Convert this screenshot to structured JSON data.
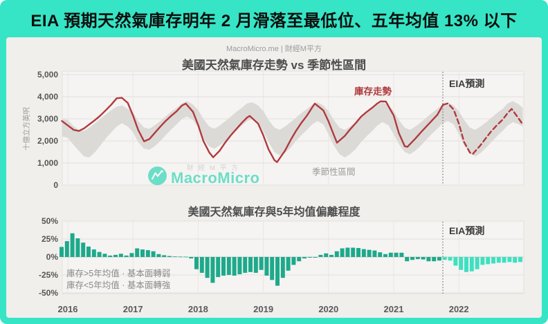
{
  "banner": {
    "title": "EIA 預期天然氣庫存明年 2 月滑落至最低位、五年均值 13% 以下"
  },
  "header": {
    "source": "MacroMicro.me | 財經M平方"
  },
  "watermark": {
    "brand": "MacroMicro",
    "overlay": "財經M平方"
  },
  "colors": {
    "accent": "#35e5c5",
    "line": "#b03a3d",
    "band": "#dcdad7",
    "bar_history": "#1ea98b",
    "bar_forecast": "#3fe0c0",
    "grid": "#e3e1de",
    "grid_year": "#e8e6e3",
    "zero_line": "#ccc9c6",
    "plot_bg": "#f5f4f2",
    "divider": "#6b6b6b"
  },
  "chart_data": [
    {
      "type": "line",
      "title": "美國天然氣庫存走勢 vs 季節性區間",
      "ylabel": "十億立方英呎",
      "ylim": [
        0,
        5000
      ],
      "grid": true,
      "yticks": [
        {
          "v": 5000,
          "label": "5,000"
        },
        {
          "v": 4000,
          "label": "4,000"
        },
        {
          "v": 3000,
          "label": "3,000"
        },
        {
          "v": 2000,
          "label": "2,000"
        },
        {
          "v": 1000,
          "label": "1,000"
        },
        {
          "v": 0,
          "label": "0"
        }
      ],
      "years": [
        "2016",
        "2017",
        "2018",
        "2019",
        "2020",
        "2021",
        "2022"
      ],
      "labels": {
        "series": "庫存走勢",
        "band": "季節性區間",
        "forecast": "EIA預測"
      },
      "forecast_start_t": 5.755,
      "x_unit": "years_since_2016",
      "series": [
        {
          "name": "庫存走勢",
          "style": "solid",
          "points": [
            [
              -0.09,
              2900
            ],
            [
              0,
              2700
            ],
            [
              0.09,
              2500
            ],
            [
              0.17,
              2450
            ],
            [
              0.25,
              2570
            ],
            [
              0.33,
              2750
            ],
            [
              0.42,
              2950
            ],
            [
              0.5,
              3150
            ],
            [
              0.58,
              3380
            ],
            [
              0.67,
              3650
            ],
            [
              0.75,
              3930
            ],
            [
              0.83,
              3950
            ],
            [
              0.92,
              3720
            ],
            [
              1.0,
              3150
            ],
            [
              1.08,
              2500
            ],
            [
              1.17,
              1980
            ],
            [
              1.25,
              2080
            ],
            [
              1.33,
              2350
            ],
            [
              1.42,
              2650
            ],
            [
              1.5,
              2900
            ],
            [
              1.58,
              3120
            ],
            [
              1.67,
              3340
            ],
            [
              1.75,
              3600
            ],
            [
              1.81,
              3690
            ],
            [
              1.92,
              3320
            ],
            [
              2.0,
              2720
            ],
            [
              2.08,
              2000
            ],
            [
              2.17,
              1480
            ],
            [
              2.23,
              1260
            ],
            [
              2.33,
              1560
            ],
            [
              2.42,
              1950
            ],
            [
              2.5,
              2250
            ],
            [
              2.58,
              2520
            ],
            [
              2.67,
              2820
            ],
            [
              2.75,
              3060
            ],
            [
              2.79,
              3130
            ],
            [
              2.92,
              2780
            ],
            [
              3.0,
              2250
            ],
            [
              3.08,
              1620
            ],
            [
              3.17,
              1130
            ],
            [
              3.21,
              1040
            ],
            [
              3.33,
              1550
            ],
            [
              3.42,
              2050
            ],
            [
              3.5,
              2450
            ],
            [
              3.58,
              2800
            ],
            [
              3.67,
              3150
            ],
            [
              3.75,
              3520
            ],
            [
              3.79,
              3690
            ],
            [
              3.92,
              3380
            ],
            [
              4.0,
              2880
            ],
            [
              4.08,
              2280
            ],
            [
              4.13,
              1920
            ],
            [
              4.25,
              2230
            ],
            [
              4.33,
              2520
            ],
            [
              4.42,
              2820
            ],
            [
              4.5,
              3100
            ],
            [
              4.58,
              3300
            ],
            [
              4.67,
              3500
            ],
            [
              4.75,
              3700
            ],
            [
              4.8,
              3790
            ],
            [
              4.88,
              3780
            ],
            [
              5.0,
              3150
            ],
            [
              5.08,
              2350
            ],
            [
              5.17,
              1760
            ],
            [
              5.21,
              1730
            ],
            [
              5.33,
              2100
            ],
            [
              5.42,
              2400
            ],
            [
              5.5,
              2650
            ],
            [
              5.58,
              2900
            ],
            [
              5.67,
              3180
            ],
            [
              5.755,
              3630
            ]
          ]
        },
        {
          "name": "庫存走勢 (EIA預測)",
          "style": "dashed",
          "points": [
            [
              5.755,
              3630
            ],
            [
              5.83,
              3700
            ],
            [
              5.92,
              3420
            ],
            [
              6.0,
              2780
            ],
            [
              6.08,
              1950
            ],
            [
              6.17,
              1470
            ],
            [
              6.21,
              1400
            ],
            [
              6.33,
              1800
            ],
            [
              6.42,
              2150
            ],
            [
              6.5,
              2450
            ],
            [
              6.58,
              2700
            ],
            [
              6.67,
              2960
            ],
            [
              6.75,
              3270
            ],
            [
              6.81,
              3450
            ],
            [
              6.92,
              3000
            ],
            [
              6.98,
              2750
            ]
          ]
        }
      ],
      "band": {
        "name": "季節性區間",
        "points": [
          [
            -0.09,
            3000,
            2200
          ],
          [
            0,
            2950,
            2150
          ],
          [
            0.08,
            2700,
            1850
          ],
          [
            0.17,
            2500,
            1550
          ],
          [
            0.25,
            2450,
            1300
          ],
          [
            0.33,
            2600,
            1250
          ],
          [
            0.42,
            2800,
            1500
          ],
          [
            0.5,
            3000,
            1800
          ],
          [
            0.58,
            3200,
            2100
          ],
          [
            0.67,
            3400,
            2400
          ],
          [
            0.75,
            3550,
            2650
          ],
          [
            0.83,
            3600,
            2800
          ],
          [
            0.92,
            3450,
            2650
          ],
          [
            1.0,
            3300,
            2400
          ],
          [
            1.08,
            2900,
            1950
          ],
          [
            1.17,
            2600,
            1650
          ],
          [
            1.25,
            2550,
            1600
          ],
          [
            1.33,
            2700,
            1750
          ],
          [
            1.42,
            2900,
            2000
          ],
          [
            1.5,
            3100,
            2250
          ],
          [
            1.58,
            3300,
            2500
          ],
          [
            1.67,
            3500,
            2750
          ],
          [
            1.75,
            3700,
            3000
          ],
          [
            1.83,
            3800,
            3100
          ],
          [
            1.92,
            3650,
            2950
          ],
          [
            2.0,
            3400,
            2600
          ],
          [
            2.08,
            3000,
            2100
          ],
          [
            2.17,
            2650,
            1750
          ],
          [
            2.25,
            2550,
            1650
          ],
          [
            2.33,
            2700,
            1800
          ],
          [
            2.42,
            2900,
            2000
          ],
          [
            2.5,
            3100,
            2250
          ],
          [
            2.58,
            3300,
            2450
          ],
          [
            2.67,
            3500,
            2700
          ],
          [
            2.75,
            3700,
            2900
          ],
          [
            2.83,
            3750,
            3000
          ],
          [
            2.92,
            3600,
            2850
          ],
          [
            3.0,
            3350,
            2450
          ],
          [
            3.08,
            2950,
            1950
          ],
          [
            3.17,
            2600,
            1500
          ],
          [
            3.25,
            2500,
            1350
          ],
          [
            3.33,
            2650,
            1450
          ],
          [
            3.42,
            2850,
            1700
          ],
          [
            3.5,
            3050,
            2000
          ],
          [
            3.58,
            3250,
            2250
          ],
          [
            3.67,
            3450,
            2500
          ],
          [
            3.75,
            3650,
            2750
          ],
          [
            3.83,
            3750,
            2900
          ],
          [
            3.92,
            3600,
            2750
          ],
          [
            4.0,
            3350,
            2300
          ],
          [
            4.08,
            2950,
            1800
          ],
          [
            4.17,
            2600,
            1400
          ],
          [
            4.25,
            2500,
            1250
          ],
          [
            4.33,
            2650,
            1400
          ],
          [
            4.42,
            2850,
            1650
          ],
          [
            4.5,
            3050,
            1950
          ],
          [
            4.58,
            3250,
            2200
          ],
          [
            4.67,
            3450,
            2450
          ],
          [
            4.75,
            3650,
            2700
          ],
          [
            4.83,
            3750,
            2850
          ],
          [
            4.92,
            3600,
            2700
          ],
          [
            5.0,
            3350,
            2300
          ],
          [
            5.08,
            2950,
            1850
          ],
          [
            5.17,
            2600,
            1500
          ],
          [
            5.25,
            2500,
            1400
          ],
          [
            5.33,
            2650,
            1550
          ],
          [
            5.42,
            2850,
            1800
          ],
          [
            5.5,
            3050,
            2050
          ],
          [
            5.58,
            3250,
            2300
          ],
          [
            5.67,
            3450,
            2550
          ],
          [
            5.75,
            3650,
            2800
          ],
          [
            5.83,
            3750,
            2900
          ],
          [
            5.92,
            3600,
            2750
          ],
          [
            6.0,
            3350,
            2300
          ],
          [
            6.08,
            2950,
            1800
          ],
          [
            6.17,
            2600,
            1450
          ],
          [
            6.25,
            2500,
            1300
          ],
          [
            6.33,
            2650,
            1450
          ],
          [
            6.42,
            2850,
            1700
          ],
          [
            6.5,
            3050,
            1950
          ],
          [
            6.58,
            3250,
            2200
          ],
          [
            6.67,
            3450,
            2450
          ],
          [
            6.75,
            3700,
            2700
          ],
          [
            6.83,
            3800,
            2850
          ],
          [
            6.92,
            3650,
            2750
          ],
          [
            6.98,
            3500,
            2650
          ]
        ]
      }
    },
    {
      "type": "bar",
      "title": "美國天然氣庫存與5年均值偏離程度",
      "unit": "%",
      "ylim": [
        -50,
        50
      ],
      "grid": true,
      "yticks": [
        {
          "v": 50,
          "label": "50%"
        },
        {
          "v": 25,
          "label": "25%"
        },
        {
          "v": 0,
          "label": "0%"
        },
        {
          "v": -25,
          "label": "-25%"
        },
        {
          "v": -50,
          "label": "-50%"
        }
      ],
      "years": [
        "2016",
        "2017",
        "2018",
        "2019",
        "2020",
        "2021",
        "2022"
      ],
      "frequency": "monthly",
      "start": "2016-01",
      "values_history": [
        14,
        22,
        33,
        26,
        20,
        14.5,
        10.5,
        7,
        4.5,
        2,
        3,
        4.5,
        2,
        5.5,
        12,
        10.5,
        9.5,
        8,
        4,
        2.5,
        1.3,
        0.8,
        0.6,
        0.4,
        -2,
        -17,
        -22,
        -29,
        -36,
        -28,
        -26,
        -25,
        -26,
        -24,
        -22,
        -21,
        -22,
        -18,
        -26,
        -32,
        -40,
        -29,
        -19,
        -11,
        -6,
        -2,
        -1,
        -1,
        3,
        5,
        3,
        8,
        12,
        13,
        13,
        12.5,
        11,
        10,
        9,
        6.5,
        4,
        6,
        6,
        6,
        -6,
        -4,
        -3,
        -3.5,
        -6,
        -6,
        -5
      ],
      "values_forecast": [
        -4,
        -5,
        -12,
        -18,
        -21,
        -20,
        -17,
        -11,
        -10,
        -9,
        -8,
        -8,
        -7,
        -8,
        -7
      ],
      "forecast_label": "EIA預測",
      "notes": [
        "庫存>5年均值 · 基本面轉弱",
        "庫存<5年均值 · 基本面轉強"
      ]
    }
  ]
}
